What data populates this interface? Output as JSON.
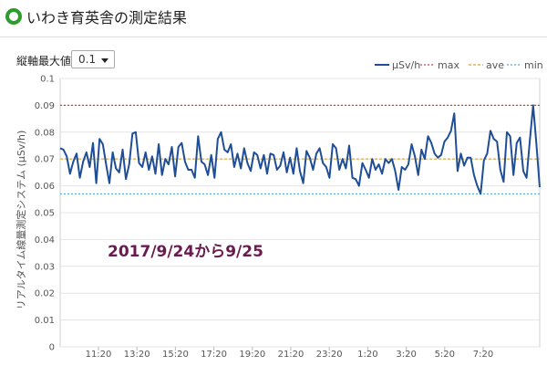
{
  "header": {
    "title": "いわき育英舎の測定結果",
    "icon": "green-circle-icon"
  },
  "controls": {
    "ymax_label": "縦軸最大値",
    "ymax_value": "0.1"
  },
  "chart_data": {
    "type": "line",
    "ylabel": "リアルタイム線量測定システム (μSv/h)",
    "ylim": [
      0,
      0.1
    ],
    "yticks": [
      "0",
      "0.01",
      "0.02",
      "0.03",
      "0.04",
      "0.05",
      "0.06",
      "0.07",
      "0.08",
      "0.09",
      "0.1"
    ],
    "xticks": [
      "11:20",
      "13:20",
      "15:20",
      "17:20",
      "19:20",
      "21:20",
      "23:20",
      "1:20",
      "3:20",
      "5:20",
      "7:20"
    ],
    "legend_position": "top-right",
    "annotation": "2017/9/24から9/25",
    "colors": {
      "usvh": "#1f4e96",
      "max": "#d04040",
      "ave": "#d8a838",
      "min": "#5aaed6"
    },
    "series": [
      {
        "name": "μSv/h",
        "values": [
          0.074,
          0.0735,
          0.071,
          0.0645,
          0.069,
          0.072,
          0.063,
          0.069,
          0.0725,
          0.067,
          0.076,
          0.061,
          0.0775,
          0.0755,
          0.068,
          0.061,
          0.0725,
          0.0665,
          0.065,
          0.0735,
          0.0625,
          0.068,
          0.0795,
          0.08,
          0.0685,
          0.067,
          0.0725,
          0.066,
          0.071,
          0.0645,
          0.0755,
          0.064,
          0.07,
          0.068,
          0.0745,
          0.0635,
          0.0745,
          0.076,
          0.069,
          0.066,
          0.066,
          0.063,
          0.0785,
          0.069,
          0.068,
          0.064,
          0.0715,
          0.063,
          0.0775,
          0.08,
          0.0735,
          0.0725,
          0.0755,
          0.067,
          0.072,
          0.0665,
          0.074,
          0.0685,
          0.0655,
          0.0725,
          0.0715,
          0.0665,
          0.0715,
          0.0645,
          0.072,
          0.0715,
          0.066,
          0.0675,
          0.0725,
          0.065,
          0.0705,
          0.0645,
          0.074,
          0.0655,
          0.061,
          0.073,
          0.0705,
          0.066,
          0.072,
          0.074,
          0.0685,
          0.067,
          0.063,
          0.0755,
          0.074,
          0.066,
          0.07,
          0.0665,
          0.075,
          0.063,
          0.0625,
          0.06,
          0.0685,
          0.066,
          0.063,
          0.07,
          0.066,
          0.068,
          0.0645,
          0.07,
          0.0685,
          0.07,
          0.0655,
          0.0585,
          0.067,
          0.066,
          0.068,
          0.0755,
          0.071,
          0.064,
          0.0735,
          0.07,
          0.0785,
          0.076,
          0.072,
          0.0705,
          0.0715,
          0.0765,
          0.078,
          0.0805,
          0.087,
          0.0655,
          0.072,
          0.0675,
          0.0705,
          0.0705,
          0.064,
          0.06,
          0.057,
          0.0695,
          0.072,
          0.0805,
          0.0775,
          0.0765,
          0.066,
          0.0615,
          0.08,
          0.0785,
          0.064,
          0.076,
          0.078,
          0.0655,
          0.063,
          0.077,
          0.09,
          0.0755,
          0.0595
        ]
      },
      {
        "name": "max",
        "constant": 0.09
      },
      {
        "name": "ave",
        "constant": 0.07
      },
      {
        "name": "min",
        "constant": 0.057
      }
    ]
  }
}
